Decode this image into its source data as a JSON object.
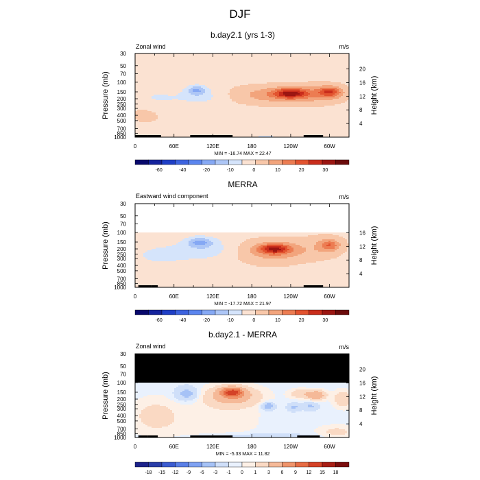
{
  "figure": {
    "title": "DJF"
  },
  "chart_data": [
    {
      "type": "heatmap",
      "title": "b.day2.1 (yrs 1-3)",
      "left_label": "Zonal wind",
      "right_label": "m/s",
      "ylabel": "Pressure (mb)",
      "ylabel_right": "Height (km)",
      "y_ticks": [
        "30",
        "50",
        "70",
        "100",
        "150",
        "200",
        "250",
        "300",
        "400",
        "500",
        "700",
        "850",
        "1000"
      ],
      "y_tick_values": [
        30,
        50,
        70,
        100,
        150,
        200,
        250,
        300,
        400,
        500,
        700,
        850,
        1000
      ],
      "height_ticks": [
        "20",
        "16",
        "12",
        "8",
        "4"
      ],
      "height_tick_values": [
        20,
        16,
        12,
        8,
        4
      ],
      "x_ticks": [
        "0",
        "60E",
        "120E",
        "180",
        "120W",
        "60W"
      ],
      "x_tick_values": [
        0,
        60,
        120,
        180,
        240,
        300
      ],
      "xlim": [
        0,
        330
      ],
      "ylim": [
        1000,
        30
      ],
      "stats": "MIN = -16.74  MAX =  22.47",
      "colorbar_labels": [
        "-60",
        "-40",
        "-20",
        "-10",
        "0",
        "10",
        "20",
        "30"
      ],
      "colorbar_levels": [
        -70,
        -60,
        -50,
        -40,
        -30,
        -20,
        -15,
        -10,
        -5,
        0,
        5,
        10,
        15,
        20,
        25,
        30
      ],
      "blobs": [
        {
          "lon": 240,
          "p": 160,
          "value": 21,
          "sx": 18,
          "sy": 0.14
        },
        {
          "lon": 218,
          "p": 170,
          "value": 10,
          "sx": 50,
          "sy": 0.28
        },
        {
          "lon": 300,
          "p": 150,
          "value": 16,
          "sx": 12,
          "sy": 0.15
        },
        {
          "lon": 290,
          "p": 160,
          "value": 6,
          "sx": 30,
          "sy": 0.3
        },
        {
          "lon": 95,
          "p": 140,
          "value": -12,
          "sx": 10,
          "sy": 0.14
        },
        {
          "lon": 105,
          "p": 180,
          "value": -5,
          "sx": 25,
          "sy": 0.25
        },
        {
          "lon": 30,
          "p": 200,
          "value": -4,
          "sx": 30,
          "sy": 0.3
        },
        {
          "lon": 15,
          "p": 350,
          "value": 3,
          "sx": 25,
          "sy": 0.4
        },
        {
          "lon": 180,
          "p": 650,
          "value": 2,
          "sx": 90,
          "sy": 0.3
        },
        {
          "lon": 200,
          "p": 950,
          "value": -4,
          "sx": 45,
          "sy": 0.1
        },
        {
          "lon": 20,
          "p": 950,
          "value": -3,
          "sx": 20,
          "sy": 0.1
        }
      ],
      "base_value": -2,
      "masked_above_p": 0,
      "land_segments": [
        [
          0,
          20
        ],
        [
          20,
          40
        ],
        [
          85,
          150
        ],
        [
          260,
          290
        ]
      ]
    },
    {
      "type": "heatmap",
      "title": "MERRA",
      "left_label": "Eastward wind component",
      "right_label": "m/s",
      "ylabel": "Pressure (mb)",
      "ylabel_right": "Height (km)",
      "y_ticks": [
        "30",
        "50",
        "70",
        "100",
        "150",
        "200",
        "250",
        "300",
        "400",
        "500",
        "700",
        "850",
        "1000"
      ],
      "y_tick_values": [
        30,
        50,
        70,
        100,
        150,
        200,
        250,
        300,
        400,
        500,
        700,
        850,
        1000
      ],
      "height_ticks": [
        "16",
        "12",
        "8",
        "4"
      ],
      "height_tick_values": [
        16,
        12,
        8,
        4
      ],
      "x_ticks": [
        "0",
        "60E",
        "120E",
        "180",
        "120W",
        "60W"
      ],
      "x_tick_values": [
        0,
        60,
        120,
        180,
        240,
        300
      ],
      "xlim": [
        0,
        330
      ],
      "ylim": [
        1000,
        30
      ],
      "stats": "MIN = -17.72  MAX =  21.97",
      "colorbar_labels": [
        "-60",
        "-40",
        "-20",
        "-10",
        "0",
        "10",
        "20",
        "30"
      ],
      "colorbar_levels": [
        -70,
        -60,
        -50,
        -40,
        -30,
        -20,
        -15,
        -10,
        -5,
        0,
        5,
        10,
        15,
        20,
        25,
        30
      ],
      "blobs": [
        {
          "lon": 215,
          "p": 200,
          "value": 21,
          "sx": 16,
          "sy": 0.14
        },
        {
          "lon": 215,
          "p": 220,
          "value": 10,
          "sx": 40,
          "sy": 0.35
        },
        {
          "lon": 300,
          "p": 170,
          "value": 12,
          "sx": 10,
          "sy": 0.16
        },
        {
          "lon": 295,
          "p": 180,
          "value": 5,
          "sx": 25,
          "sy": 0.35
        },
        {
          "lon": 100,
          "p": 150,
          "value": -12,
          "sx": 14,
          "sy": 0.14
        },
        {
          "lon": 110,
          "p": 200,
          "value": -6,
          "sx": 30,
          "sy": 0.3
        },
        {
          "lon": 40,
          "p": 260,
          "value": -4,
          "sx": 35,
          "sy": 0.35
        },
        {
          "lon": 130,
          "p": 750,
          "value": 2,
          "sx": 90,
          "sy": 0.35
        },
        {
          "lon": 200,
          "p": 950,
          "value": -4,
          "sx": 40,
          "sy": 0.1
        },
        {
          "lon": 20,
          "p": 950,
          "value": -2,
          "sx": 20,
          "sy": 0.1
        }
      ],
      "base_value": -2,
      "masked_above_p": 100,
      "land_segments": [
        [
          5,
          25
        ],
        [
          25,
          35
        ],
        [
          260,
          290
        ]
      ]
    },
    {
      "type": "heatmap",
      "title": "b.day2.1 - MERRA",
      "left_label": "Zonal wind",
      "right_label": "m/s",
      "ylabel": "Pressure (mb)",
      "ylabel_right": "Height (km)",
      "y_ticks": [
        "30",
        "50",
        "70",
        "100",
        "150",
        "200",
        "250",
        "300",
        "400",
        "500",
        "700",
        "850",
        "1000"
      ],
      "y_tick_values": [
        30,
        50,
        70,
        100,
        150,
        200,
        250,
        300,
        400,
        500,
        700,
        850,
        1000
      ],
      "height_ticks": [
        "20",
        "16",
        "12",
        "8",
        "4"
      ],
      "height_tick_values": [
        20,
        16,
        12,
        8,
        4
      ],
      "x_ticks": [
        "0",
        "60E",
        "120E",
        "180",
        "120W",
        "60W"
      ],
      "x_tick_values": [
        0,
        60,
        120,
        180,
        240,
        300
      ],
      "xlim": [
        0,
        330
      ],
      "ylim": [
        1000,
        30
      ],
      "stats": "MIN =  -5.33  MAX =  11.82",
      "colorbar_labels": [
        "-18",
        "-15",
        "-12",
        "-9",
        "-6",
        "-3",
        "-1",
        "0",
        "1",
        "3",
        "6",
        "9",
        "12",
        "15",
        "18"
      ],
      "colorbar_levels": [
        -21,
        -18,
        -15,
        -12,
        -9,
        -6,
        -3,
        -1,
        0,
        1,
        3,
        6,
        9,
        12,
        15,
        18,
        21
      ],
      "blobs": [
        {
          "lon": 150,
          "p": 150,
          "value": 11,
          "sx": 12,
          "sy": 0.14
        },
        {
          "lon": 150,
          "p": 180,
          "value": 5,
          "sx": 30,
          "sy": 0.3
        },
        {
          "lon": 80,
          "p": 160,
          "value": -4,
          "sx": 12,
          "sy": 0.2
        },
        {
          "lon": 205,
          "p": 270,
          "value": -5,
          "sx": 7,
          "sy": 0.12
        },
        {
          "lon": 245,
          "p": 280,
          "value": -3,
          "sx": 7,
          "sy": 0.12
        },
        {
          "lon": 270,
          "p": 270,
          "value": -3,
          "sx": 8,
          "sy": 0.12
        },
        {
          "lon": 255,
          "p": 160,
          "value": 3,
          "sx": 12,
          "sy": 0.14
        },
        {
          "lon": 280,
          "p": 170,
          "value": 6,
          "sx": 10,
          "sy": 0.14
        },
        {
          "lon": 320,
          "p": 200,
          "value": 3,
          "sx": 10,
          "sy": 0.25
        },
        {
          "lon": 30,
          "p": 400,
          "value": 2,
          "sx": 25,
          "sy": 0.5
        },
        {
          "lon": 120,
          "p": 500,
          "value": 1,
          "sx": 60,
          "sy": 0.6
        },
        {
          "lon": 200,
          "p": 950,
          "value": -2,
          "sx": 50,
          "sy": 0.08
        },
        {
          "lon": 310,
          "p": 800,
          "value": 2,
          "sx": 20,
          "sy": 0.2
        }
      ],
      "base_value": -0.5,
      "masked_above_p": 100,
      "mask_color": "#000000",
      "land_segments": [
        [
          5,
          20
        ],
        [
          20,
          35
        ],
        [
          85,
          150
        ],
        [
          250,
          285
        ]
      ]
    }
  ],
  "colors": {
    "palette": [
      "#08086c",
      "#14229c",
      "#1f3fc6",
      "#3d63df",
      "#5b85ee",
      "#85a8f4",
      "#adc6f6",
      "#d5e4fb",
      "#fbe2d2",
      "#f8c7a9",
      "#f2a47c",
      "#ec7c52",
      "#e2532f",
      "#c92d1c",
      "#9b1612",
      "#6b0b0b"
    ],
    "diff_palette": [
      "#1d238a",
      "#2a3ea8",
      "#3c5cd0",
      "#5a7fe6",
      "#7fa2f2",
      "#a6c2f6",
      "#cfdff9",
      "#e9f1fd",
      "#fdf0e6",
      "#fad9c3",
      "#f5b998",
      "#ef946b",
      "#e66c44",
      "#d44227",
      "#a81f16",
      "#7a0e0e"
    ]
  }
}
